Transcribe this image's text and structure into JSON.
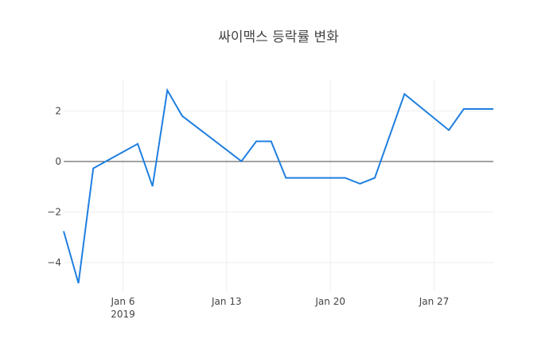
{
  "chart_data": {
    "type": "line",
    "title": "싸이맥스 등락률 변화",
    "xlabel": "",
    "ylabel": "",
    "x": [
      "2019-01-02",
      "2019-01-03",
      "2019-01-04",
      "2019-01-07",
      "2019-01-08",
      "2019-01-09",
      "2019-01-10",
      "2019-01-14",
      "2019-01-15",
      "2019-01-16",
      "2019-01-17",
      "2019-01-21",
      "2019-01-22",
      "2019-01-23",
      "2019-01-25",
      "2019-01-28",
      "2019-01-29",
      "2019-01-31"
    ],
    "series": [
      {
        "name": "등락률",
        "color": "#1f7fe0",
        "values": [
          -2.76,
          -4.82,
          -0.27,
          0.7,
          -0.98,
          2.82,
          1.8,
          0.01,
          0.8,
          0.8,
          -0.65,
          -0.65,
          -0.88,
          -0.65,
          2.67,
          1.24,
          2.08,
          2.08
        ]
      }
    ],
    "ylim": [
      -5.0,
      3.3
    ],
    "xlim": [
      "2019-01-02",
      "2019-01-31"
    ],
    "y_ticks": [
      2,
      0,
      -2,
      -4
    ],
    "y_tick_labels": [
      "2",
      "0",
      "−2",
      "−4"
    ],
    "x_ticks": [
      "2019-01-06",
      "2019-01-13",
      "2019-01-20",
      "2019-01-27"
    ],
    "x_tick_labels": [
      "Jan 6",
      "Jan 13",
      "Jan 20",
      "Jan 27"
    ],
    "x_tick_sublabel": "2019",
    "grid": true,
    "legend": false,
    "zero_line": true
  }
}
